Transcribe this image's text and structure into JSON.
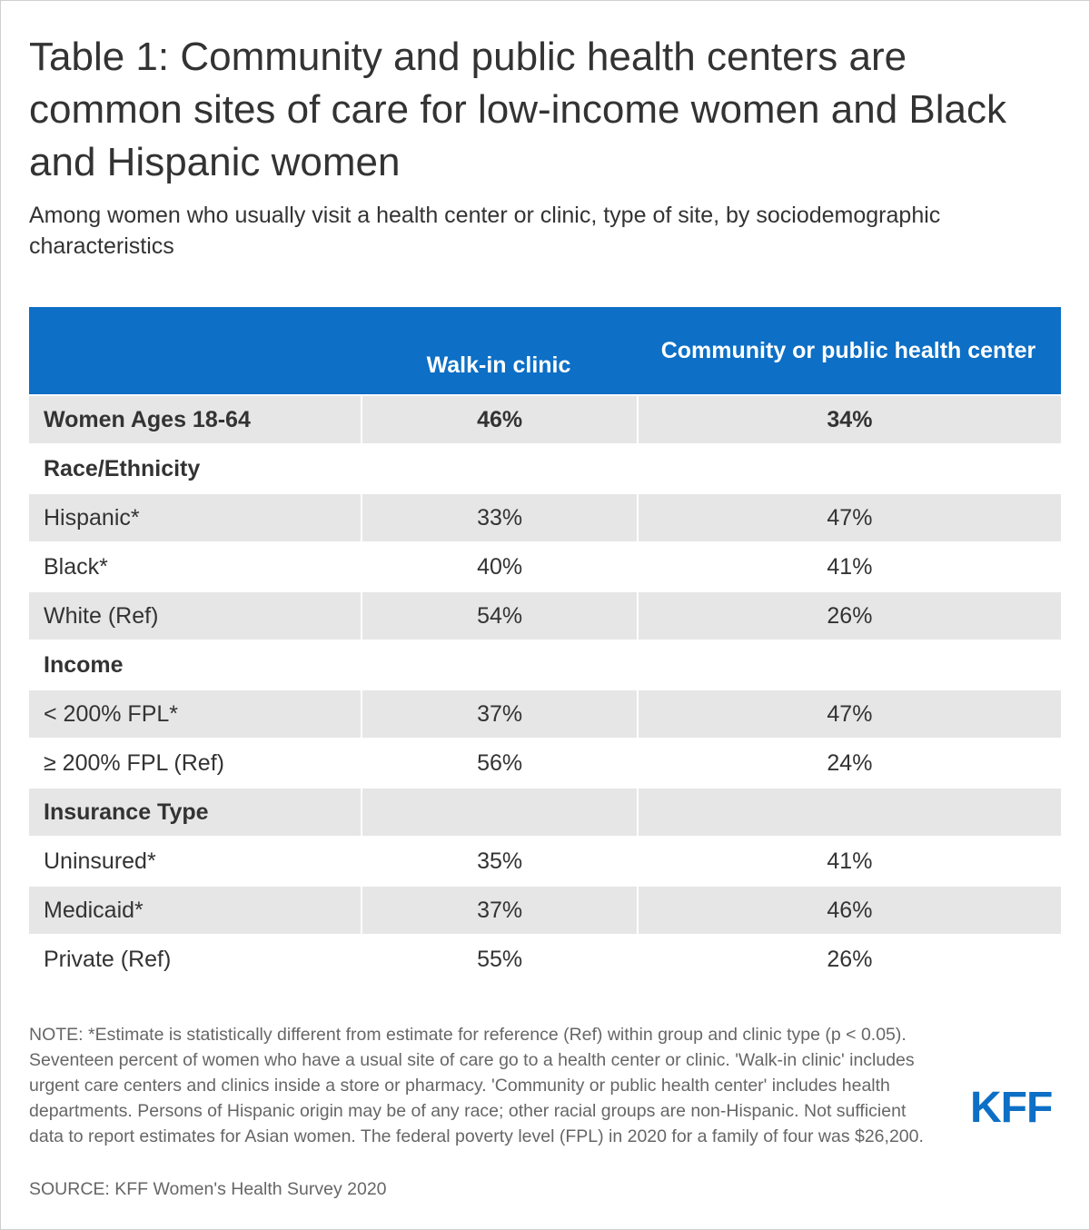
{
  "title": "Table 1: Community and public health centers are common sites of care for low-income women and Black and Hispanic women",
  "subtitle": "Among women who usually visit a health center or clinic, type of site, by sociodemographic characteristics",
  "colors": {
    "header_bg": "#0d6fc5",
    "row_shade": "#e6e6e6",
    "logo": "#0d6fc5"
  },
  "chart_data": {
    "type": "table",
    "columns": [
      "",
      "Walk-in clinic",
      "Community or public health center"
    ],
    "rows": [
      {
        "label": "Women Ages 18-64",
        "walk_in": "46%",
        "community": "34%"
      },
      {
        "label": "Race/Ethnicity",
        "walk_in": "",
        "community": ""
      },
      {
        "label": "Hispanic*",
        "walk_in": "33%",
        "community": "47%"
      },
      {
        "label": "Black*",
        "walk_in": "40%",
        "community": "41%"
      },
      {
        "label": "White (Ref)",
        "walk_in": "54%",
        "community": "26%"
      },
      {
        "label": "Income",
        "walk_in": "",
        "community": ""
      },
      {
        "label": "< 200% FPL*",
        "walk_in": "37%",
        "community": "47%"
      },
      {
        "label": "≥ 200% FPL (Ref)",
        "walk_in": "56%",
        "community": "24%"
      },
      {
        "label": "Insurance Type",
        "walk_in": "",
        "community": ""
      },
      {
        "label": "Uninsured*",
        "walk_in": "35%",
        "community": "41%"
      },
      {
        "label": "Medicaid*",
        "walk_in": "37%",
        "community": "46%"
      },
      {
        "label": "Private (Ref)",
        "walk_in": "55%",
        "community": "26%"
      }
    ]
  },
  "note": "NOTE: *Estimate is statistically different from estimate for reference (Ref) within group and clinic type (p < 0.05). Seventeen percent of women who have a usual site of care go to a health center or clinic. 'Walk-in clinic' includes urgent care centers and clinics inside a store or pharmacy. 'Community or public health center' includes health departments. Persons of Hispanic origin may be of any race; other racial groups are non-Hispanic. Not sufficient data to report estimates for Asian women. The federal poverty level (FPL) in 2020 for a family of four was $26,200.",
  "source": "SOURCE: KFF Women's Health Survey 2020",
  "logo": "KFF"
}
